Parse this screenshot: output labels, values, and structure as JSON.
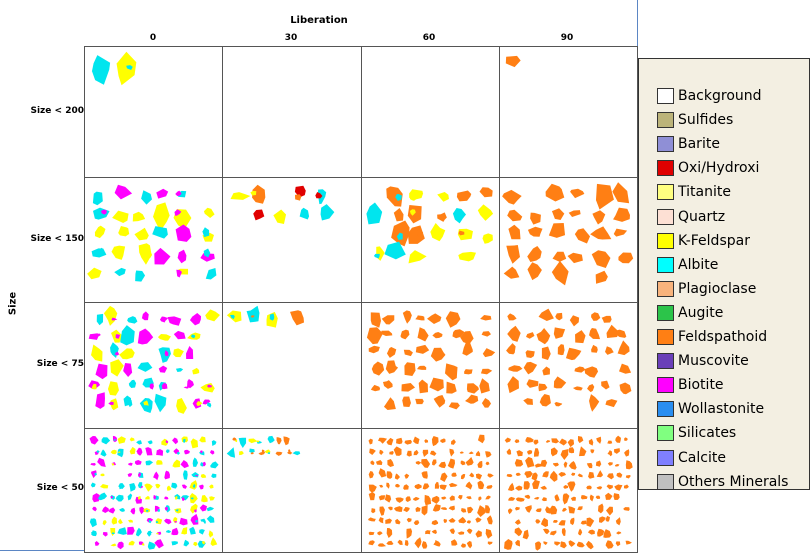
{
  "chart": {
    "axis_title_top": "Liberation",
    "axis_title_left": "Size",
    "columns": [
      "0",
      "30",
      "60",
      "90"
    ],
    "rows": [
      "Size < 200",
      "Size < 150",
      "Size < 75",
      "Size < 50"
    ]
  },
  "particles": {
    "note_free": "",
    "colors": {
      "yellow": "#ffff00",
      "cyan": "#00e5ee",
      "orange": "#ff7f14",
      "magenta": "#ff00ff",
      "red": "#e00000"
    },
    "cells": [
      [
        {
          "density": 0.12,
          "mix": "yc"
        },
        {
          "density": 0,
          "mix": "none"
        },
        {
          "density": 0,
          "mix": "none"
        },
        {
          "density": 0.03,
          "mix": "o"
        }
      ],
      [
        {
          "density": 0.85,
          "mix": "ycm"
        },
        {
          "density": 0.25,
          "mix": "ycor"
        },
        {
          "density": 0.7,
          "mix": "oyc"
        },
        {
          "density": 0.8,
          "mix": "o"
        }
      ],
      [
        {
          "density": 0.85,
          "mix": "ycm"
        },
        {
          "density": 0.2,
          "mix": "yco"
        },
        {
          "density": 0.8,
          "mix": "o"
        },
        {
          "density": 0.9,
          "mix": "o"
        }
      ],
      [
        {
          "density": 1.0,
          "mix": "ycm"
        },
        {
          "density": 0.18,
          "mix": "yco"
        },
        {
          "density": 1.0,
          "mix": "o"
        },
        {
          "density": 1.0,
          "mix": "o"
        }
      ]
    ]
  },
  "legend": {
    "items": [
      {
        "label": "Background",
        "color": "#ffffff",
        "icon": "swatch"
      },
      {
        "label": "Sulfides",
        "color": "#bcb47a",
        "icon": "swatch"
      },
      {
        "label": "Barite",
        "color": "#8f8fd6",
        "icon": "swatch"
      },
      {
        "label": "Oxi/Hydroxi",
        "color": "#e00000",
        "icon": "swatch"
      },
      {
        "label": "Titanite",
        "color": "#ffff80",
        "icon": "swatch"
      },
      {
        "label": "Quartz",
        "color": "#fde0d4",
        "icon": "swatch"
      },
      {
        "label": "K-Feldspar",
        "color": "#ffff00",
        "icon": "swatch"
      },
      {
        "label": "Albite",
        "color": "#00ffff",
        "icon": "swatch"
      },
      {
        "label": "Plagioclase",
        "color": "#f8b37c",
        "icon": "swatch"
      },
      {
        "label": "Augite",
        "color": "#2cc44a",
        "icon": "swatch"
      },
      {
        "label": "Feldspathoid",
        "color": "#ff7f14",
        "icon": "swatch"
      },
      {
        "label": "Muscovite",
        "color": "#6a3fb8",
        "icon": "swatch"
      },
      {
        "label": "Biotite",
        "color": "#ff00ff",
        "icon": "swatch"
      },
      {
        "label": "Wollastonite",
        "color": "#2a8ef0",
        "icon": "swatch"
      },
      {
        "label": "Silicates",
        "color": "#80ff80",
        "icon": "swatch"
      },
      {
        "label": "Calcite",
        "color": "#7f7fff",
        "icon": "swatch"
      },
      {
        "label": "Others Minerals",
        "color": "#c0c0c0",
        "icon": "swatch"
      }
    ]
  }
}
